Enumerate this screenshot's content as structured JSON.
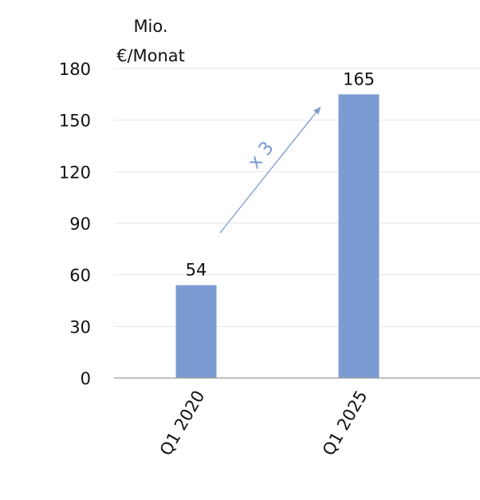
{
  "chart_data": {
    "type": "bar",
    "unit_label_lines": [
      "Mio.",
      "€/Monat"
    ],
    "categories": [
      "Q1 2020",
      "Q1 2025"
    ],
    "values": [
      54,
      165
    ],
    "data_labels": [
      "54",
      "165"
    ],
    "ylim": [
      0,
      180
    ],
    "yticks": [
      0,
      30,
      60,
      90,
      120,
      150,
      180
    ],
    "ytick_labels": [
      "0",
      "30",
      "60",
      "90",
      "120",
      "150",
      "180"
    ],
    "grid": true,
    "annotation": {
      "text": "x 3",
      "from": "Q1 2020",
      "to": "Q1 2025"
    },
    "colors": {
      "bar": "#7b9cd2",
      "grid": "#e6e6e6",
      "axis": "#9a9a9a",
      "annotation": "#7a9bd0"
    }
  }
}
